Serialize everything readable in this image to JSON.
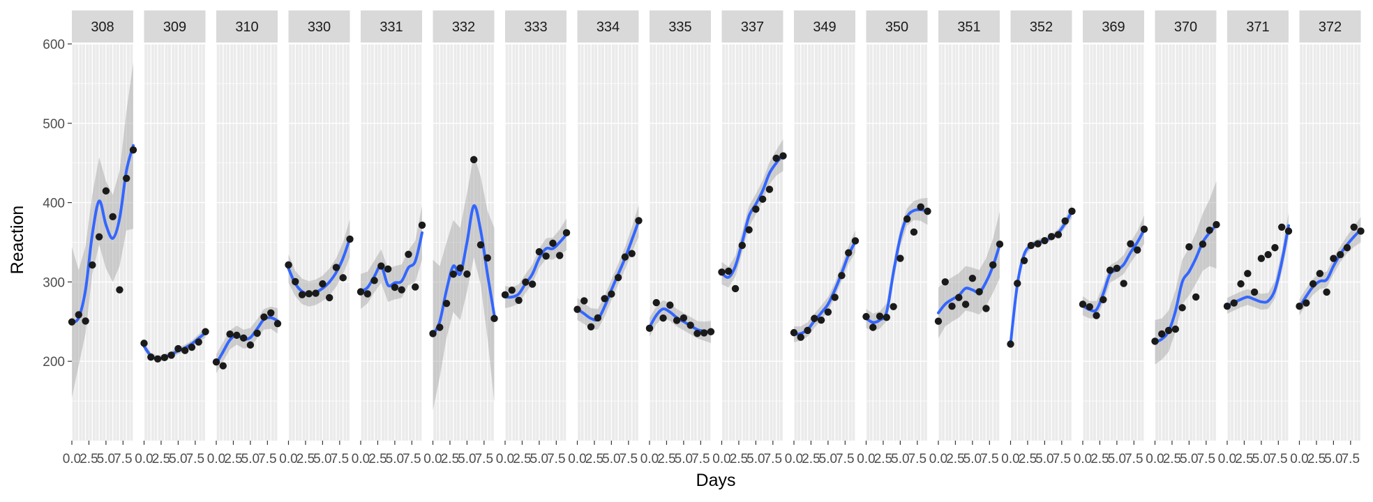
{
  "chart_data": {
    "type": "line",
    "xlabel": "Days",
    "ylabel": "Reaction",
    "xlim": [
      0,
      9
    ],
    "ylim": [
      100,
      600
    ],
    "y_ticks": [
      200,
      300,
      400,
      500,
      600
    ],
    "x_ticks": [
      0.0,
      2.5,
      5.0,
      7.5
    ],
    "x_tick_labels": [
      "0.0",
      "2.5",
      "5.0",
      "7.5"
    ],
    "grid": true,
    "colors": {
      "panel": "#ebebeb",
      "strip": "#d9d9d9",
      "grid": "#ffffff",
      "points": "#1a1a1a",
      "smooth": "#3366ff",
      "ribbon": "#999999"
    },
    "panels": [
      {
        "subject": "308",
        "x": [
          0,
          1,
          2,
          3,
          4,
          5,
          6,
          7,
          8,
          9
        ],
        "y": [
          249.6,
          258.7,
          250.8,
          321.4,
          356.9,
          414.7,
          382.2,
          290.1,
          430.6,
          466.4
        ],
        "smooth": [
          249,
          255,
          290,
          360,
          402,
          372,
          355,
          380,
          440,
          472
        ],
        "band": [
          95,
          60,
          55,
          50,
          55,
          55,
          55,
          60,
          75,
          105
        ]
      },
      {
        "subject": "309",
        "x": [
          0,
          1,
          2,
          3,
          4,
          5,
          6,
          7,
          8,
          9
        ],
        "y": [
          222.7,
          205.3,
          203.0,
          204.7,
          207.7,
          215.9,
          213.6,
          217.7,
          224.3,
          237.3
        ],
        "smooth": [
          219,
          207,
          203,
          205,
          209,
          213,
          217,
          222,
          229,
          236
        ],
        "band": [
          5,
          4,
          4,
          4,
          4,
          4,
          4,
          4,
          5,
          6
        ]
      },
      {
        "subject": "310",
        "x": [
          0,
          1,
          2,
          3,
          4,
          5,
          6,
          7,
          8,
          9
        ],
        "y": [
          199.1,
          194.3,
          234.3,
          232.8,
          229.3,
          220.5,
          235.4,
          255.8,
          261.0,
          247.5
        ],
        "smooth": [
          197,
          212,
          227,
          233,
          228,
          230,
          241,
          253,
          255,
          251
        ],
        "band": [
          12,
          12,
          12,
          12,
          12,
          12,
          12,
          13,
          14,
          16
        ]
      },
      {
        "subject": "330",
        "x": [
          0,
          1,
          2,
          3,
          4,
          5,
          6,
          7,
          8,
          9
        ],
        "y": [
          321.5,
          300.4,
          283.9,
          285.1,
          285.8,
          297.6,
          280.2,
          318.3,
          305.3,
          354.0
        ],
        "smooth": [
          317,
          298,
          288,
          285,
          287,
          292,
          300,
          312,
          330,
          355
        ],
        "band": [
          18,
          16,
          16,
          16,
          16,
          16,
          17,
          18,
          20,
          24
        ]
      },
      {
        "subject": "331",
        "x": [
          0,
          1,
          2,
          3,
          4,
          5,
          6,
          7,
          8,
          9
        ],
        "y": [
          287.6,
          285.0,
          301.8,
          320.1,
          316.3,
          293.3,
          290.1,
          334.8,
          293.7,
          371.6
        ],
        "smooth": [
          288,
          293,
          307,
          320,
          296,
          299,
          301,
          318,
          326,
          362
        ],
        "band": [
          22,
          20,
          20,
          21,
          21,
          21,
          21,
          22,
          26,
          34
        ]
      },
      {
        "subject": "332",
        "x": [
          0,
          1,
          2,
          3,
          4,
          5,
          6,
          7,
          8,
          9
        ],
        "y": [
          234.9,
          242.8,
          272.9,
          309.8,
          317.5,
          309.9,
          454.2,
          346.8,
          330.3,
          253.9
        ],
        "smooth": [
          233,
          250,
          290,
          320,
          310,
          350,
          396,
          365,
          310,
          258
        ],
        "band": [
          95,
          70,
          60,
          58,
          58,
          62,
          65,
          68,
          80,
          110
        ]
      },
      {
        "subject": "333",
        "x": [
          0,
          1,
          2,
          3,
          4,
          5,
          6,
          7,
          8,
          9
        ],
        "y": [
          283.8,
          289.6,
          276.8,
          299.8,
          297.2,
          338.1,
          332.6,
          348.8,
          333.4,
          362.0
        ],
        "smooth": [
          281,
          281,
          285,
          298,
          310,
          330,
          342,
          342,
          350,
          360
        ],
        "band": [
          14,
          12,
          12,
          12,
          12,
          12,
          13,
          14,
          16,
          20
        ]
      },
      {
        "subject": "334",
        "x": [
          0,
          1,
          2,
          3,
          4,
          5,
          6,
          7,
          8,
          9
        ],
        "y": [
          265.5,
          276.2,
          243.4,
          254.7,
          279.0,
          284.8,
          305.6,
          331.5,
          335.8,
          377.3
        ],
        "smooth": [
          266,
          260,
          254,
          253,
          269,
          290,
          310,
          330,
          353,
          377
        ],
        "band": [
          14,
          13,
          13,
          13,
          13,
          13,
          13,
          14,
          16,
          20
        ]
      },
      {
        "subject": "335",
        "x": [
          0,
          1,
          2,
          3,
          4,
          5,
          6,
          7,
          8,
          9
        ],
        "y": [
          241.6,
          273.9,
          254.5,
          270.8,
          251.5,
          254.6,
          245.5,
          235.1,
          235.8,
          237.3
        ],
        "smooth": [
          243,
          258,
          266,
          262,
          255,
          250,
          245,
          240,
          238,
          237
        ],
        "band": [
          12,
          11,
          11,
          11,
          11,
          11,
          11,
          11,
          12,
          14
        ]
      },
      {
        "subject": "337",
        "x": [
          0,
          1,
          2,
          3,
          4,
          5,
          6,
          7,
          8,
          9
        ],
        "y": [
          312.4,
          313.6,
          291.6,
          346.1,
          365.7,
          391.8,
          404.3,
          416.7,
          455.9,
          458.9
        ],
        "smooth": [
          311,
          306,
          320,
          350,
          383,
          398,
          415,
          437,
          450,
          460
        ],
        "band": [
          14,
          13,
          13,
          13,
          13,
          13,
          13,
          14,
          16,
          20
        ]
      },
      {
        "subject": "349",
        "x": [
          0,
          1,
          2,
          3,
          4,
          5,
          6,
          7,
          8,
          9
        ],
        "y": [
          236.1,
          230.3,
          238.9,
          254.0,
          251.9,
          262.1,
          280.6,
          308.1,
          336.8,
          351.8
        ],
        "smooth": [
          234,
          235,
          240,
          251,
          261,
          272,
          290,
          311,
          334,
          351
        ],
        "band": [
          10,
          9,
          9,
          9,
          9,
          9,
          9,
          10,
          11,
          14
        ]
      },
      {
        "subject": "350",
        "x": [
          0,
          1,
          2,
          3,
          4,
          5,
          6,
          7,
          8,
          9
        ],
        "y": [
          256.3,
          242.8,
          256.8,
          255.4,
          268.9,
          329.7,
          379.4,
          362.9,
          394.5,
          389.1
        ],
        "smooth": [
          254,
          249,
          252,
          262,
          312,
          356,
          382,
          390,
          391,
          389
        ],
        "band": [
          12,
          11,
          11,
          11,
          11,
          11,
          11,
          12,
          14,
          17
        ]
      },
      {
        "subject": "351",
        "x": [
          0,
          1,
          2,
          3,
          4,
          5,
          6,
          7,
          8,
          9
        ],
        "y": [
          250.5,
          300.1,
          269.4,
          280.4,
          271.8,
          304.6,
          287.7,
          266.6,
          321.5,
          347.6
        ],
        "smooth": [
          261,
          272,
          278,
          283,
          292,
          290,
          287,
          300,
          320,
          347
        ],
        "band": [
          32,
          28,
          28,
          28,
          28,
          28,
          28,
          30,
          34,
          42
        ]
      },
      {
        "subject": "352",
        "x": [
          0,
          1,
          2,
          3,
          4,
          5,
          6,
          7,
          8,
          9
        ],
        "y": [
          221.7,
          298.2,
          326.9,
          346.0,
          348.1,
          352.0,
          357.2,
          359.6,
          376.9,
          389.2
        ],
        "smooth": [
          222,
          297,
          335,
          346,
          350,
          352,
          356,
          362,
          374,
          389
        ],
        "band": [
          5,
          4,
          4,
          4,
          4,
          4,
          4,
          5,
          6,
          8
        ]
      },
      {
        "subject": "369",
        "x": [
          0,
          1,
          2,
          3,
          4,
          5,
          6,
          7,
          8,
          9
        ],
        "y": [
          271.9,
          268.7,
          257.7,
          277.7,
          314.8,
          317.2,
          298.1,
          348.1,
          340.3,
          366.5
        ],
        "smooth": [
          270,
          265,
          265,
          285,
          310,
          315,
          322,
          337,
          350,
          366
        ],
        "band": [
          12,
          11,
          11,
          11,
          11,
          11,
          12,
          13,
          14,
          18
        ]
      },
      {
        "subject": "370",
        "x": [
          0,
          1,
          2,
          3,
          4,
          5,
          6,
          7,
          8,
          9
        ],
        "y": [
          225.3,
          234.5,
          238.9,
          240.5,
          267.5,
          344.2,
          281.1,
          347.6,
          365.2,
          372.2
        ],
        "smooth": [
          224,
          228,
          238,
          263,
          300,
          313,
          330,
          350,
          362,
          372
        ],
        "band": [
          28,
          26,
          26,
          26,
          28,
          30,
          32,
          36,
          42,
          55
        ]
      },
      {
        "subject": "371",
        "x": [
          0,
          1,
          2,
          3,
          4,
          5,
          6,
          7,
          8,
          9
        ],
        "y": [
          269.4,
          273.5,
          297.6,
          310.6,
          287.2,
          329.6,
          334.5,
          343.2,
          369.1,
          364.1
        ],
        "smooth": [
          270,
          274,
          278,
          281,
          278,
          275,
          276,
          290,
          325,
          371
        ],
        "band": [
          10,
          10,
          10,
          10,
          10,
          10,
          10,
          11,
          13,
          16
        ]
      },
      {
        "subject": "372",
        "x": [
          0,
          1,
          2,
          3,
          4,
          5,
          6,
          7,
          8,
          9
        ],
        "y": [
          269.4,
          273.5,
          297.6,
          310.6,
          287.2,
          329.6,
          334.5,
          343.2,
          369.1,
          364.1
        ],
        "smooth": [
          268,
          282,
          294,
          301,
          303,
          320,
          335,
          347,
          357,
          366
        ],
        "band": [
          10,
          10,
          10,
          10,
          10,
          10,
          10,
          11,
          13,
          16
        ]
      }
    ]
  }
}
